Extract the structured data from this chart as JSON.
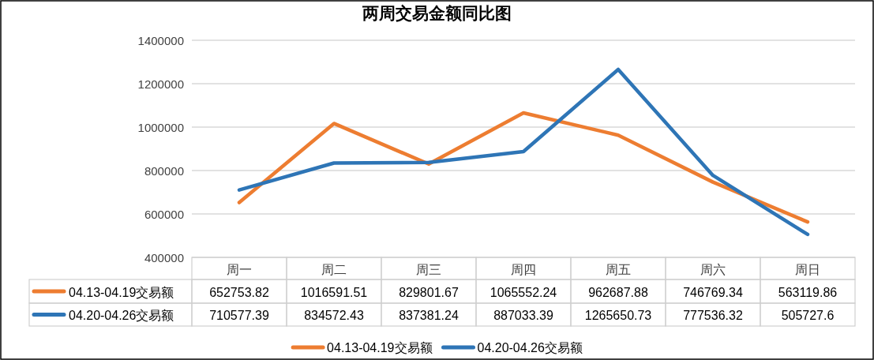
{
  "chart_data": {
    "type": "line",
    "title": "两周交易金额同比图",
    "categories": [
      "周一",
      "周二",
      "周三",
      "周四",
      "周五",
      "周六",
      "周日"
    ],
    "series": [
      {
        "name": "04.13-04.19交易额",
        "color": "#ed7d31",
        "values": [
          652753.82,
          1016591.51,
          829801.67,
          1065552.24,
          962687.88,
          746769.34,
          563119.86
        ]
      },
      {
        "name": "04.20-04.26交易额",
        "color": "#2e75b6",
        "values": [
          710577.39,
          834572.43,
          837381.24,
          887033.39,
          1265650.73,
          777536.32,
          505727.6
        ]
      }
    ],
    "ylim": [
      400000,
      1400000
    ],
    "yticks": [
      400000,
      600000,
      800000,
      1000000,
      1200000,
      1400000
    ],
    "grid": "y",
    "legend": "bottom",
    "marker": "none",
    "line_style": "solid",
    "data_labels": true
  }
}
